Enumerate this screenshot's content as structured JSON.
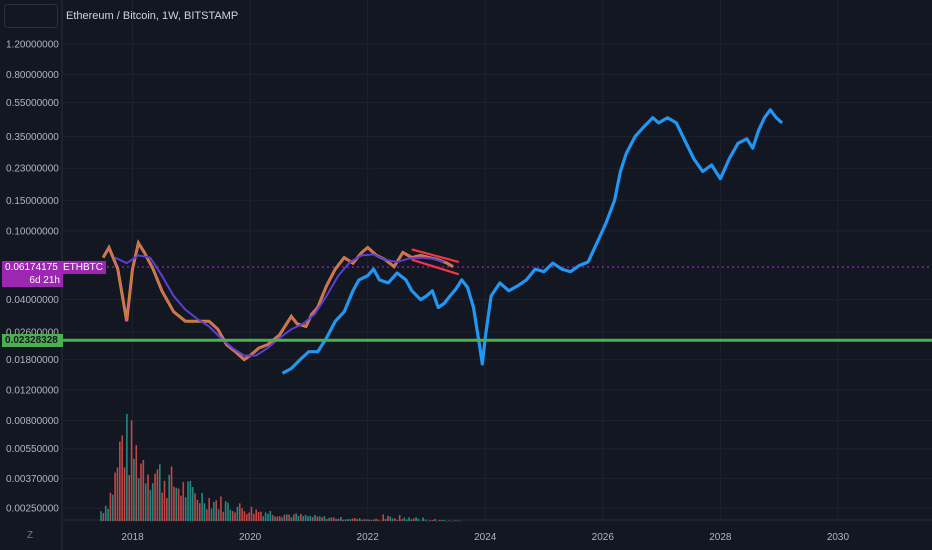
{
  "header": {
    "title": "Ethereum / Bitcoin, 1W, BITSTAMP"
  },
  "colors": {
    "background": "#131722",
    "grid": "#1e222d",
    "text": "#b2b5be",
    "forecast": "#2196f3",
    "ma_line": "#5b3fd6",
    "price_line": "#9c27b0",
    "support_line": "#4caf50",
    "wedge": "#f23645",
    "volume_up": "#26a69a",
    "volume_down": "#ef5350"
  },
  "markers": {
    "last_price": "0.06174175",
    "countdown": "6d 21h",
    "symbol": "ETHBTC",
    "support_level": "0.02328328"
  },
  "icons": {
    "corner": "z-icon"
  },
  "chart_data": {
    "type": "line",
    "title": "Ethereum / Bitcoin, 1W, BITSTAMP",
    "y_scale": "log",
    "y_ticks": [
      "1.20000000",
      "0.80000000",
      "0.55000000",
      "0.35000000",
      "0.23000000",
      "0.15000000",
      "0.10000000",
      "0.04000000",
      "0.02600000",
      "0.01800000",
      "0.01200000",
      "0.00800000",
      "0.00550000",
      "0.00370000",
      "0.00250000"
    ],
    "x_ticks": [
      "2018",
      "2020",
      "2022",
      "2024",
      "2026",
      "2028",
      "2030"
    ],
    "xlim": [
      2016.8,
      2031.6
    ],
    "grid": true,
    "series": [
      {
        "name": "ETHBTC",
        "values": [
          [
            2017.5,
            0.07
          ],
          [
            2017.6,
            0.08
          ],
          [
            2017.75,
            0.06
          ],
          [
            2017.9,
            0.03
          ],
          [
            2018.0,
            0.06
          ],
          [
            2018.1,
            0.085
          ],
          [
            2018.2,
            0.075
          ],
          [
            2018.35,
            0.06
          ],
          [
            2018.5,
            0.045
          ],
          [
            2018.7,
            0.034
          ],
          [
            2018.9,
            0.03
          ],
          [
            2019.1,
            0.03
          ],
          [
            2019.3,
            0.03
          ],
          [
            2019.45,
            0.027
          ],
          [
            2019.6,
            0.022
          ],
          [
            2019.75,
            0.02
          ],
          [
            2019.9,
            0.018
          ],
          [
            2020.0,
            0.019
          ],
          [
            2020.15,
            0.021
          ],
          [
            2020.3,
            0.022
          ],
          [
            2020.5,
            0.025
          ],
          [
            2020.7,
            0.032
          ],
          [
            2020.8,
            0.029
          ],
          [
            2020.95,
            0.028
          ],
          [
            2021.05,
            0.033
          ],
          [
            2021.15,
            0.036
          ],
          [
            2021.3,
            0.048
          ],
          [
            2021.45,
            0.06
          ],
          [
            2021.6,
            0.07
          ],
          [
            2021.75,
            0.065
          ],
          [
            2021.9,
            0.075
          ],
          [
            2022.0,
            0.08
          ],
          [
            2022.15,
            0.072
          ],
          [
            2022.3,
            0.068
          ],
          [
            2022.45,
            0.062
          ],
          [
            2022.6,
            0.075
          ],
          [
            2022.75,
            0.07
          ],
          [
            2022.9,
            0.072
          ],
          [
            2023.05,
            0.07
          ],
          [
            2023.2,
            0.068
          ],
          [
            2023.35,
            0.065
          ],
          [
            2023.45,
            0.062
          ]
        ]
      },
      {
        "name": "",
        "values": [
          [
            2017.7,
            0.07
          ],
          [
            2017.9,
            0.065
          ],
          [
            2018.1,
            0.072
          ],
          [
            2018.3,
            0.07
          ],
          [
            2018.5,
            0.055
          ],
          [
            2018.7,
            0.042
          ],
          [
            2018.9,
            0.035
          ],
          [
            2019.1,
            0.031
          ],
          [
            2019.3,
            0.028
          ],
          [
            2019.5,
            0.024
          ],
          [
            2019.7,
            0.021
          ],
          [
            2019.9,
            0.019
          ],
          [
            2020.1,
            0.019
          ],
          [
            2020.3,
            0.021
          ],
          [
            2020.5,
            0.024
          ],
          [
            2020.7,
            0.027
          ],
          [
            2020.9,
            0.029
          ],
          [
            2021.1,
            0.033
          ],
          [
            2021.3,
            0.042
          ],
          [
            2021.5,
            0.055
          ],
          [
            2021.7,
            0.066
          ],
          [
            2021.9,
            0.072
          ],
          [
            2022.1,
            0.073
          ],
          [
            2022.3,
            0.068
          ],
          [
            2022.5,
            0.066
          ],
          [
            2022.7,
            0.069
          ],
          [
            2022.9,
            0.07
          ],
          [
            2023.1,
            0.069
          ],
          [
            2023.3,
            0.066
          ]
        ]
      },
      {
        "name": "",
        "values": [
          [
            2020.55,
            0.015
          ],
          [
            2020.7,
            0.016
          ],
          [
            2020.85,
            0.018
          ],
          [
            2021.0,
            0.02
          ],
          [
            2021.15,
            0.02
          ],
          [
            2021.3,
            0.024
          ],
          [
            2021.45,
            0.03
          ],
          [
            2021.6,
            0.034
          ],
          [
            2021.75,
            0.045
          ],
          [
            2021.85,
            0.052
          ],
          [
            2022.0,
            0.055
          ],
          [
            2022.1,
            0.06
          ],
          [
            2022.2,
            0.052
          ],
          [
            2022.35,
            0.05
          ],
          [
            2022.5,
            0.057
          ],
          [
            2022.65,
            0.052
          ],
          [
            2022.75,
            0.045
          ],
          [
            2022.9,
            0.04
          ],
          [
            2023.0,
            0.042
          ],
          [
            2023.1,
            0.045
          ],
          [
            2023.2,
            0.036
          ],
          [
            2023.3,
            0.038
          ],
          [
            2023.4,
            0.042
          ],
          [
            2023.5,
            0.046
          ],
          [
            2023.6,
            0.052
          ],
          [
            2023.7,
            0.047
          ],
          [
            2023.8,
            0.036
          ],
          [
            2023.9,
            0.022
          ],
          [
            2023.95,
            0.017
          ],
          [
            2024.0,
            0.024
          ],
          [
            2024.1,
            0.042
          ],
          [
            2024.25,
            0.05
          ],
          [
            2024.4,
            0.045
          ],
          [
            2024.55,
            0.048
          ],
          [
            2024.7,
            0.052
          ],
          [
            2024.85,
            0.06
          ],
          [
            2025.0,
            0.058
          ],
          [
            2025.15,
            0.065
          ],
          [
            2025.3,
            0.06
          ],
          [
            2025.45,
            0.058
          ],
          [
            2025.6,
            0.063
          ],
          [
            2025.75,
            0.066
          ],
          [
            2025.9,
            0.085
          ],
          [
            2026.05,
            0.11
          ],
          [
            2026.2,
            0.15
          ],
          [
            2026.3,
            0.22
          ],
          [
            2026.4,
            0.28
          ],
          [
            2026.55,
            0.35
          ],
          [
            2026.7,
            0.4
          ],
          [
            2026.85,
            0.45
          ],
          [
            2026.95,
            0.42
          ],
          [
            2027.1,
            0.45
          ],
          [
            2027.25,
            0.42
          ],
          [
            2027.4,
            0.33
          ],
          [
            2027.55,
            0.26
          ],
          [
            2027.7,
            0.22
          ],
          [
            2027.85,
            0.24
          ],
          [
            2028.0,
            0.2
          ],
          [
            2028.15,
            0.26
          ],
          [
            2028.3,
            0.32
          ],
          [
            2028.45,
            0.34
          ],
          [
            2028.55,
            0.3
          ],
          [
            2028.65,
            0.38
          ],
          [
            2028.75,
            0.45
          ],
          [
            2028.85,
            0.5
          ],
          [
            2028.95,
            0.45
          ],
          [
            2029.05,
            0.42
          ]
        ]
      },
      {
        "name": "",
        "values": [
          [
            2022.75,
            0.078
          ],
          [
            2023.55,
            0.066
          ]
        ]
      },
      {
        "name": "",
        "values": [
          [
            2022.75,
            0.068
          ],
          [
            2023.55,
            0.056
          ]
        ]
      }
    ],
    "horizontal_lines": [
      {
        "value": 0.06174175,
        "style": "dotted"
      },
      {
        "value": 0.02328328,
        "style": "solid"
      }
    ],
    "volume": {
      "x_start": 2017.45,
      "x_end": 2023.6,
      "peak_x": 2017.8,
      "peak_value": 0.0105,
      "baseline": 0.0021
    }
  }
}
